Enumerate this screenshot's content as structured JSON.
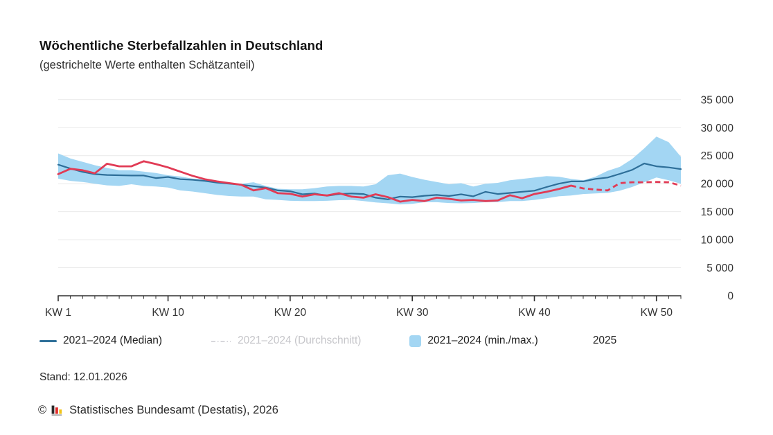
{
  "header": {
    "title": "Wöchentliche Sterbefallzahlen in Deutschland",
    "subtitle": "(gestrichelte Werte enthalten Schätzanteil)"
  },
  "legend": [
    {
      "key": "median",
      "label": "2021–2024 (Median)",
      "type": "line",
      "color": "#2e6f99",
      "active": true
    },
    {
      "key": "durchschnitt",
      "label": "2021–2024 (Durchschnitt)",
      "type": "dashdot",
      "color": "#d7d7db",
      "active": false
    },
    {
      "key": "minmax",
      "label": "2021–2024 (min./max.)",
      "type": "swatch",
      "color": "#a3d6f3",
      "active": true
    },
    {
      "key": "y2025",
      "label": "2025",
      "type": "line",
      "color": "#e13b55",
      "active": true
    }
  ],
  "footer": {
    "stand": "Stand: 12.01.2026",
    "copyright": "©",
    "source": "Statistisches Bundesamt (Destatis), 2026"
  },
  "chart_data": {
    "type": "line",
    "title": "Wöchentliche Sterbefallzahlen in Deutschland",
    "subtitle": "(gestrichelte Werte enthalten Schätzanteil)",
    "x_unit": "Kalenderwoche",
    "x": [
      1,
      2,
      3,
      4,
      5,
      6,
      7,
      8,
      9,
      10,
      11,
      12,
      13,
      14,
      15,
      16,
      17,
      18,
      19,
      20,
      21,
      22,
      23,
      24,
      25,
      26,
      27,
      28,
      29,
      30,
      31,
      32,
      33,
      34,
      35,
      36,
      37,
      38,
      39,
      40,
      41,
      42,
      43,
      44,
      45,
      46,
      47,
      48,
      49,
      50,
      51,
      52
    ],
    "x_tick_weeks": [
      1,
      10,
      20,
      30,
      40,
      50
    ],
    "x_tick_labels": [
      "KW 1",
      "KW 10",
      "KW 20",
      "KW 30",
      "KW 40",
      "KW 50"
    ],
    "y_ticks": [
      0,
      5000,
      10000,
      15000,
      20000,
      25000,
      30000,
      35000
    ],
    "y_tick_labels": [
      "0",
      "5 000",
      "10 000",
      "15 000",
      "20 000",
      "25 000",
      "30 000",
      "35 000"
    ],
    "ylim": [
      0,
      37000
    ],
    "grid": true,
    "legend_position": "bottom",
    "colors": {
      "grid": "#e9e9e9",
      "axis": "#2f2f2f",
      "label": "#333333"
    },
    "series": [
      {
        "key": "median",
        "name": "2021–2024 (Median)",
        "color": "#2e6f99",
        "values": [
          23400,
          22700,
          22100,
          21700,
          21550,
          21500,
          21450,
          21450,
          21000,
          21200,
          20800,
          20700,
          20500,
          20200,
          20000,
          19800,
          19550,
          19300,
          18800,
          18650,
          18100,
          18250,
          17850,
          18150,
          18250,
          18150,
          17500,
          17200,
          17700,
          17600,
          17850,
          18000,
          17800,
          18100,
          17750,
          18550,
          18150,
          18350,
          18550,
          18750,
          19400,
          20000,
          20400,
          20400,
          20850,
          21100,
          21750,
          22450,
          23600,
          23100,
          22900,
          22600
        ]
      },
      {
        "key": "minmax",
        "name": "2021–2024 (min./max.)",
        "type": "band",
        "color": "#a3d6f3",
        "min": [
          20900,
          20500,
          20300,
          20000,
          19700,
          19600,
          19900,
          19600,
          19500,
          19300,
          18800,
          18600,
          18300,
          18000,
          17800,
          17700,
          17700,
          17200,
          17100,
          16950,
          16900,
          16900,
          16950,
          17050,
          17100,
          16900,
          16650,
          16500,
          16300,
          16400,
          16700,
          16700,
          16550,
          16500,
          16550,
          16700,
          16700,
          16900,
          16900,
          17100,
          17400,
          17750,
          17900,
          18150,
          18250,
          18350,
          18750,
          19400,
          20250,
          21100,
          20600,
          20000
        ],
        "max": [
          25400,
          24500,
          23900,
          23300,
          22800,
          22400,
          22400,
          22150,
          21900,
          21500,
          21300,
          20900,
          20700,
          20400,
          20200,
          20000,
          20250,
          19600,
          19100,
          19000,
          19000,
          19200,
          19500,
          19600,
          19600,
          19500,
          19900,
          21500,
          21800,
          21200,
          20700,
          20300,
          19900,
          20100,
          19500,
          20000,
          20150,
          20600,
          20850,
          21100,
          21350,
          21250,
          20850,
          20600,
          21250,
          22300,
          23000,
          24400,
          26300,
          28400,
          27400,
          24800
        ]
      },
      {
        "key": "y2025",
        "name": "2025",
        "color": "#e13b55",
        "dashed_from_week": 43,
        "dash_note": "gestrichelte Werte enthalten Schätzanteil",
        "values": [
          21700,
          22650,
          22400,
          21850,
          23550,
          23100,
          23100,
          24000,
          23500,
          22900,
          22150,
          21400,
          20800,
          20400,
          20100,
          19800,
          18800,
          19200,
          18300,
          18200,
          17700,
          18100,
          17900,
          18300,
          17700,
          17500,
          18100,
          17600,
          16800,
          17100,
          16900,
          17500,
          17300,
          17000,
          17100,
          16900,
          17000,
          17950,
          17400,
          18150,
          18550,
          19050,
          19650,
          19150,
          18950,
          18800,
          20100,
          20250,
          20250,
          20300,
          20250,
          19650
        ]
      },
      {
        "key": "durchschnitt",
        "name": "2021–2024 (Durchschnitt)",
        "color": "#d7d7db",
        "visible": false
      }
    ]
  }
}
